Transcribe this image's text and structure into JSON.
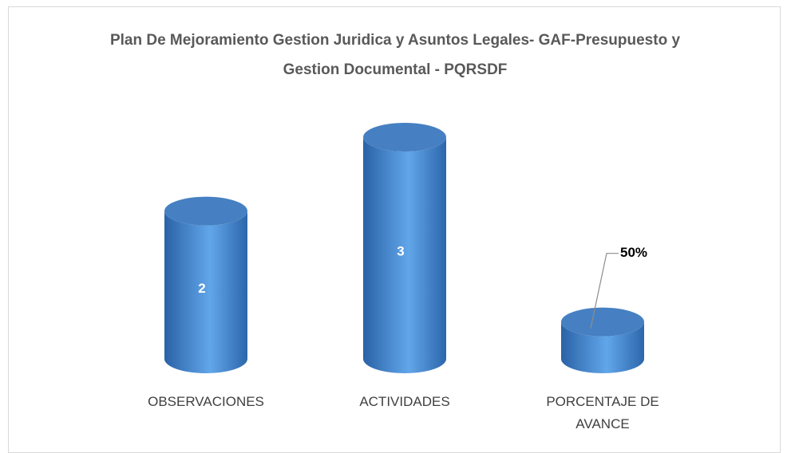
{
  "chart_data": {
    "type": "bar",
    "title": "Plan De Mejoramiento Gestion Juridica y Asuntos Legales- GAF-Presupuesto y Gestion Documental - PQRSDF",
    "categories": [
      "OBSERVACIONES",
      "ACTIVIDADES",
      "PORCENTAJE DE AVANCE"
    ],
    "values": [
      2,
      3,
      0.5
    ],
    "value_labels": [
      "2",
      "3",
      "50%"
    ],
    "color": "#3d7cc4"
  }
}
